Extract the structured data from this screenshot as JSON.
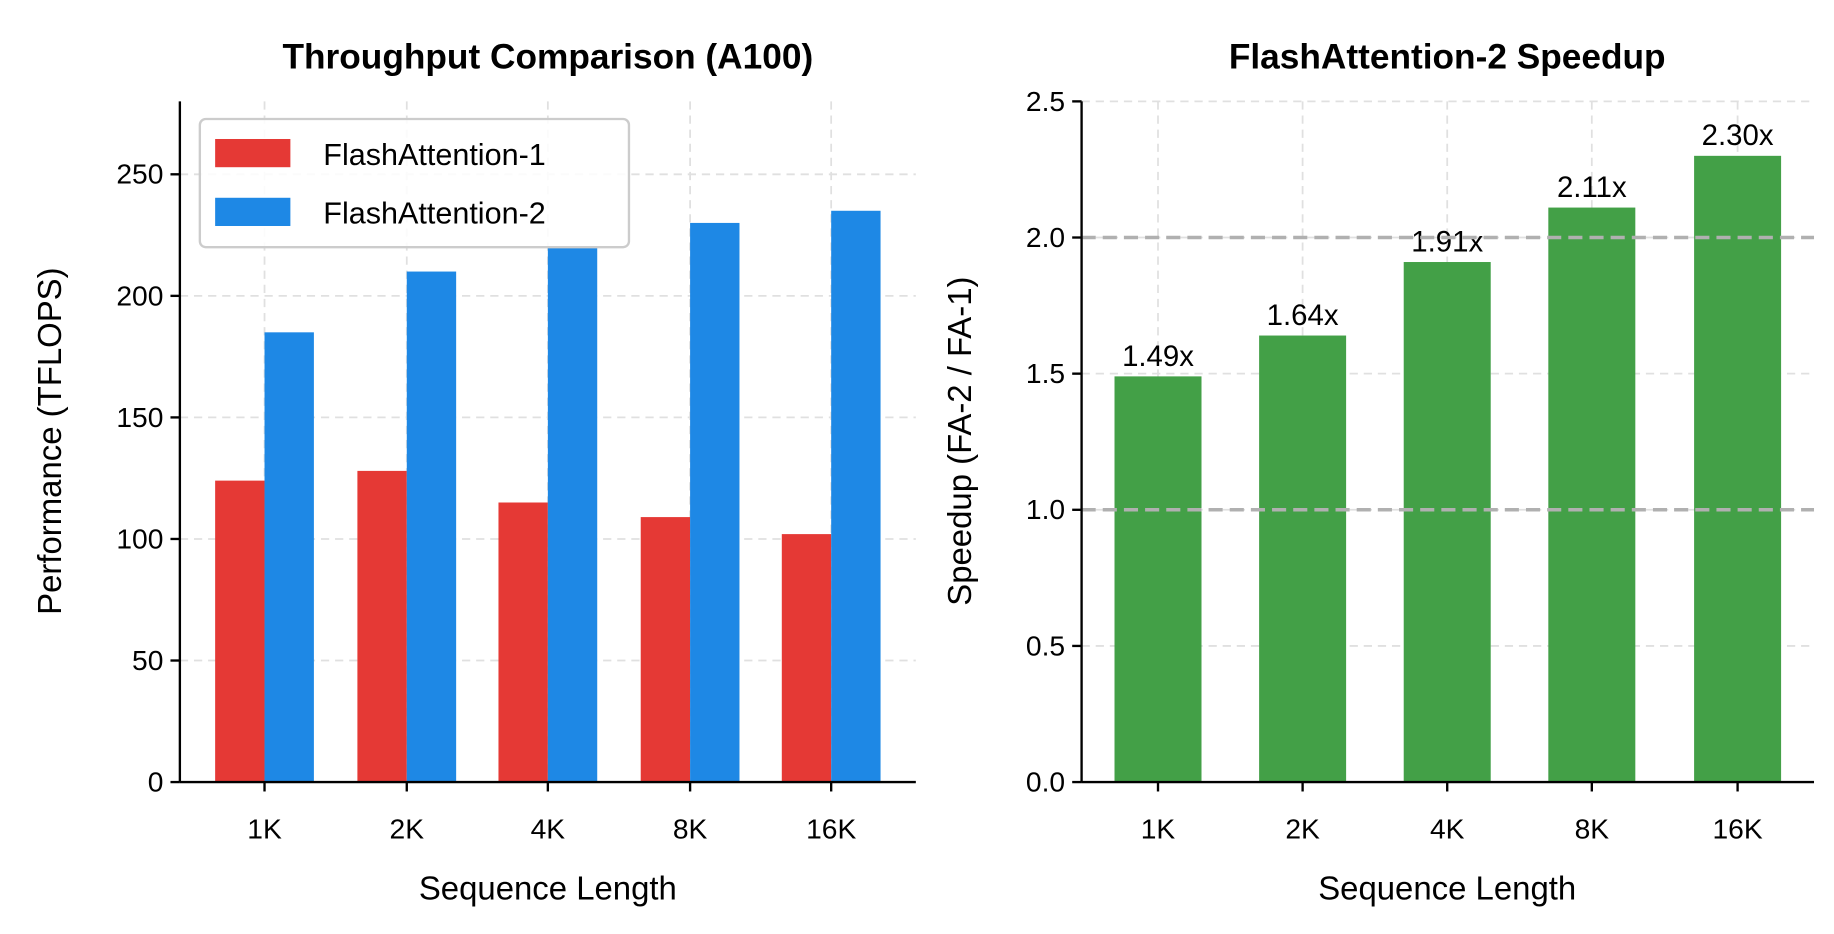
{
  "chart_data": [
    {
      "type": "bar",
      "title": "Throughput Comparison (A100)",
      "xlabel": "Sequence Length",
      "ylabel": "Performance (TFLOPS)",
      "categories": [
        "1K",
        "2K",
        "4K",
        "8K",
        "16K"
      ],
      "series": [
        {
          "name": "FlashAttention-1",
          "color": "#e53935",
          "values": [
            124,
            128,
            115,
            109,
            102
          ]
        },
        {
          "name": "FlashAttention-2",
          "color": "#1e88e5",
          "values": [
            185,
            210,
            220,
            230,
            235
          ]
        }
      ],
      "ylim": [
        0,
        280
      ],
      "yticks": [
        0,
        50,
        100,
        150,
        200,
        250
      ],
      "grid": true,
      "legend": "top-left"
    },
    {
      "type": "bar",
      "title": "FlashAttention-2 Speedup",
      "xlabel": "Sequence Length",
      "ylabel": "Speedup (FA-2 / FA-1)",
      "categories": [
        "1K",
        "2K",
        "4K",
        "8K",
        "16K"
      ],
      "values": [
        1.49,
        1.64,
        1.91,
        2.11,
        2.3
      ],
      "data_labels": [
        "1.49x",
        "1.64x",
        "1.91x",
        "2.11x",
        "2.30x"
      ],
      "color": "#43a047",
      "ylim": [
        0,
        2.5
      ],
      "yticks": [
        "0.0",
        "0.5",
        "1.0",
        "1.5",
        "2.0",
        "2.5"
      ],
      "reference_lines": [
        1.0,
        2.0
      ],
      "reference_line_color": "#b0b0b0",
      "grid": true
    }
  ]
}
